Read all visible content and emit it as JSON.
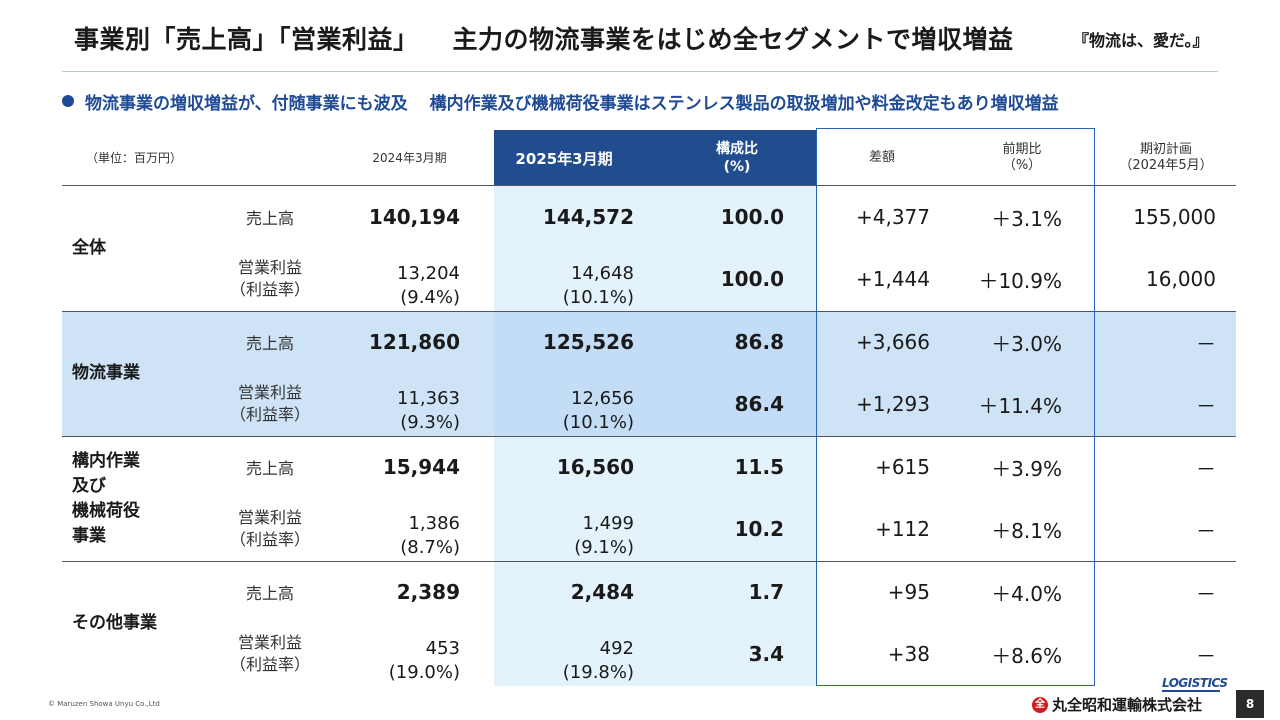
{
  "header": {
    "title_main": "事業別「売上高」「営業利益」",
    "title_sub": "主力の物流事業をはじめ全セグメントで増収増益",
    "tagline": "『物流は、愛だ。』"
  },
  "summary": {
    "part1": "物流事業の増収増益が、付随事業にも波及",
    "part2": "構内作業及び機械荷役事業はステンレス製品の取扱増加や料金改定もあり増収増益"
  },
  "table": {
    "headers": {
      "unit": "（単位：百万円）",
      "fy2024": "2024年3月期",
      "fy2025": "2025年3月期",
      "ratio_line1": "構成比",
      "ratio_line2": "(%)",
      "diff": "差額",
      "yoy_line1": "前期比",
      "yoy_line2": "（%）",
      "plan_line1": "期初計画",
      "plan_line2": "（2024年5月）"
    },
    "segments": [
      {
        "name_lines": [
          "全体"
        ],
        "sales": {
          "label": "売上高",
          "fy2024": "140,194",
          "fy2025": "144,572",
          "ratio": "100.0",
          "diff": "+4,377",
          "yoy": "＋3.1%",
          "plan": "155,000"
        },
        "profit": {
          "label_line1": "営業利益",
          "label_line2": "（利益率）",
          "fy2024": "13,204",
          "fy2024_rate": "(9.4%)",
          "fy2025": "14,648",
          "fy2025_rate": "(10.1%)",
          "ratio": "100.0",
          "diff": "+1,444",
          "yoy": "＋10.9%",
          "plan": "16,000"
        }
      },
      {
        "name_lines": [
          "物流事業"
        ],
        "sales": {
          "label": "売上高",
          "fy2024": "121,860",
          "fy2025": "125,526",
          "ratio": "86.8",
          "diff": "+3,666",
          "yoy": "＋3.0%",
          "plan": "－"
        },
        "profit": {
          "label_line1": "営業利益",
          "label_line2": "（利益率）",
          "fy2024": "11,363",
          "fy2024_rate": "(9.3%)",
          "fy2025": "12,656",
          "fy2025_rate": "(10.1%)",
          "ratio": "86.4",
          "diff": "+1,293",
          "yoy": "＋11.4%",
          "plan": "－"
        }
      },
      {
        "name_lines": [
          "構内作業",
          "及び",
          "機械荷役",
          "事業"
        ],
        "sales": {
          "label": "売上高",
          "fy2024": "15,944",
          "fy2025": "16,560",
          "ratio": "11.5",
          "diff": "+615",
          "yoy": "＋3.9%",
          "plan": "－"
        },
        "profit": {
          "label_line1": "営業利益",
          "label_line2": "（利益率）",
          "fy2024": "1,386",
          "fy2024_rate": "(8.7%)",
          "fy2025": "1,499",
          "fy2025_rate": "(9.1%)",
          "ratio": "10.2",
          "diff": "+112",
          "yoy": "＋8.1%",
          "plan": "－"
        }
      },
      {
        "name_lines": [
          "その他事業"
        ],
        "sales": {
          "label": "売上高",
          "fy2024": "2,389",
          "fy2025": "2,484",
          "ratio": "1.7",
          "diff": "+95",
          "yoy": "＋4.0%",
          "plan": "－"
        },
        "profit": {
          "label_line1": "営業利益",
          "label_line2": "（利益率）",
          "fy2024": "453",
          "fy2024_rate": "(19.0%)",
          "fy2025": "492",
          "fy2025_rate": "(19.8%)",
          "ratio": "3.4",
          "diff": "+38",
          "yoy": "＋8.6%",
          "plan": "－"
        }
      }
    ]
  },
  "footer": {
    "copyright": "© Maruzen Showa Unyu Co.,Ltd",
    "logo_text": "LOGISTICS",
    "emblem_char": "全",
    "company_name": "丸全昭和運輸株式会社",
    "page_number": "8"
  },
  "colors": {
    "accent_blue": "#1f4a94",
    "header_dark": "#214d8f",
    "row_highlight": "#cfe3f7",
    "fy2025_column": "#e4f2fc",
    "frame_blue": "#2b63b5"
  }
}
